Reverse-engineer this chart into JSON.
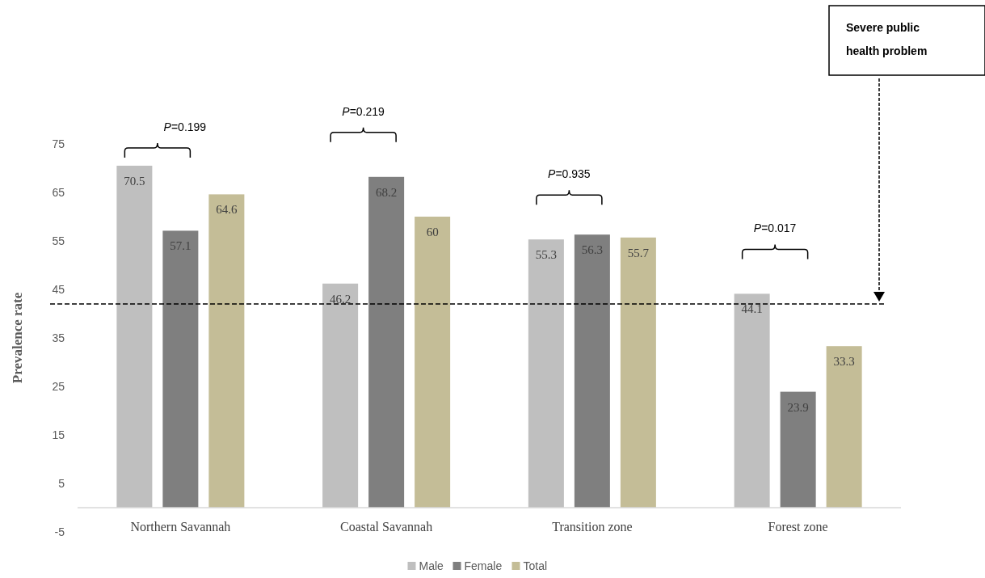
{
  "chart_data": {
    "type": "bar",
    "ylabel": "Prevalence rate",
    "categories": [
      "Northern Savannah",
      "Coastal Savannah",
      "Transition zone",
      "Forest zone"
    ],
    "series": [
      {
        "name": "Male",
        "color": "#bfbfbf",
        "values": [
          70.5,
          46.2,
          55.3,
          44.1
        ]
      },
      {
        "name": "Female",
        "color": "#7f7f7f",
        "values": [
          57.1,
          68.2,
          56.3,
          23.9
        ]
      },
      {
        "name": "Total",
        "color": "#c4bd97",
        "values": [
          64.6,
          60,
          55.7,
          33.3
        ]
      }
    ],
    "ylim": [
      -5,
      75
    ],
    "yticks": [
      -5,
      5,
      15,
      25,
      35,
      45,
      55,
      65,
      75
    ],
    "data_labels": true,
    "legend": "bottom",
    "grid": false,
    "ref_lines": [
      {
        "axis": "y",
        "value": 42,
        "line_style": "dashed",
        "color": "#000000"
      }
    ],
    "annotations": [
      "P=0.199",
      "P=0.219",
      "P=0.935",
      "P=0.017",
      "Severe public health problem"
    ]
  }
}
